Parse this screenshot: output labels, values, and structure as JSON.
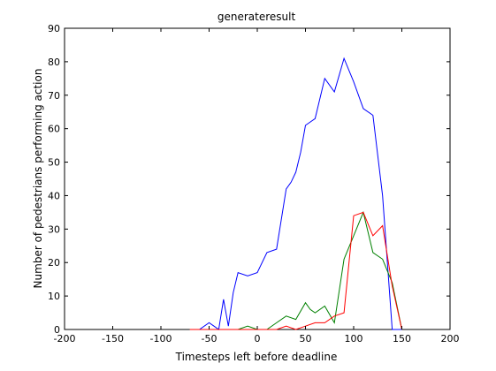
{
  "chart_data": {
    "type": "line",
    "title": "generateresult",
    "xlabel": "Timesteps left before deadline",
    "ylabel": "Number of pedestrians performing action",
    "xlim": [
      -200,
      200
    ],
    "ylim": [
      0,
      90
    ],
    "xticks": [
      -200,
      -150,
      -100,
      -50,
      0,
      50,
      100,
      150,
      200
    ],
    "yticks": [
      0,
      10,
      20,
      30,
      40,
      50,
      60,
      70,
      80,
      90
    ],
    "grid": false,
    "legend": "none",
    "series": [
      {
        "color": "#0000ff",
        "x": [
          -70,
          -60,
          -50,
          -45,
          -40,
          -35,
          -30,
          -25,
          -20,
          -10,
          0,
          10,
          20,
          30,
          35,
          40,
          45,
          50,
          55,
          60,
          70,
          80,
          90,
          100,
          110,
          120,
          130,
          140,
          150
        ],
        "y": [
          0,
          0,
          2,
          1,
          0,
          9,
          1,
          11,
          17,
          16,
          17,
          23,
          24,
          42,
          44,
          47,
          53,
          61,
          62,
          63,
          75,
          71,
          81,
          74,
          66,
          64,
          40,
          0,
          0
        ]
      },
      {
        "color": "#008000",
        "x": [
          -70,
          -20,
          -10,
          0,
          10,
          20,
          30,
          40,
          50,
          55,
          60,
          70,
          80,
          90,
          100,
          110,
          120,
          130,
          140,
          150
        ],
        "y": [
          0,
          0,
          1,
          0,
          0,
          2,
          4,
          3,
          8,
          6,
          5,
          7,
          2,
          21,
          28,
          35,
          23,
          21,
          14,
          0
        ]
      },
      {
        "color": "#ff0000",
        "x": [
          -70,
          20,
          30,
          40,
          50,
          60,
          70,
          80,
          90,
          100,
          110,
          120,
          130,
          140,
          150
        ],
        "y": [
          0,
          0,
          1,
          0,
          1,
          2,
          2,
          4,
          5,
          34,
          35,
          28,
          31,
          13,
          0
        ]
      }
    ]
  }
}
